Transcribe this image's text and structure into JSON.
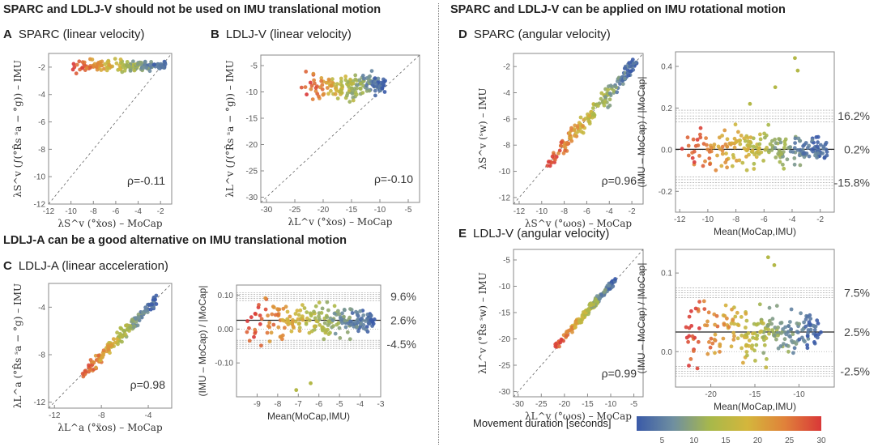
{
  "headings": {
    "top_left": "SPARC and LDLJ-V should not be used on IMU translational motion",
    "mid_left": "LDLJ-A can be a good alternative on IMU translational motion",
    "top_right": "SPARC and LDLJ-V can be applied on IMU rotational motion"
  },
  "panels": {
    "A": {
      "letter": "A",
      "title": "SPARC (linear velocity)"
    },
    "B": {
      "letter": "B",
      "title": "LDLJ-V (linear velocity)"
    },
    "C": {
      "letter": "C",
      "title": "LDLJ-A (linear acceleration)"
    },
    "D": {
      "letter": "D",
      "title": "SPARC (angular velocity)"
    },
    "E": {
      "letter": "E",
      "title": "LDLJ-V (angular velocity)"
    }
  },
  "colorbar": {
    "title": "Movement duration [seconds]",
    "ticks": [
      "5",
      "10",
      "15",
      "20",
      "25",
      "30"
    ],
    "range": [
      1,
      30
    ],
    "colors": [
      "#3a5aa8",
      "#6f8fa0",
      "#a8b84a",
      "#d4b63c",
      "#e0823a",
      "#d93838"
    ]
  },
  "chart_data": [
    {
      "id": "A",
      "type": "scatter",
      "title": "SPARC (linear velocity)",
      "xlabel": "λS^v (°ẋos) – MoCap",
      "ylabel": "λS^v (∫(°R̂s ˢa − °g)) – IMU",
      "xlim": [
        -12,
        -1
      ],
      "ylim": [
        -12,
        -1
      ],
      "xticks": [
        "-12",
        "-10",
        "-8",
        "-6",
        "-4",
        "-2"
      ],
      "yticks": [
        "-12",
        "-10",
        "-8",
        "-6",
        "-4",
        "-2"
      ],
      "identity_line": true,
      "annotation": "ρ=-0.11",
      "cluster": {
        "x_range": [
          -10,
          -1.5
        ],
        "y_center": -1.9,
        "y_spread": 0.35,
        "n": 170
      }
    },
    {
      "id": "B",
      "type": "scatter",
      "title": "LDLJ-V (linear velocity)",
      "xlabel": "λL^v (°ẋos) – MoCap",
      "ylabel": "λL^v (∫(°R̂s ˢa − °g)) – IMU",
      "xlim": [
        -31,
        -3
      ],
      "ylim": [
        -31,
        -3
      ],
      "xticks": [
        "-30",
        "-25",
        "-20",
        "-15",
        "-10",
        "-5"
      ],
      "yticks": [
        "-30",
        "-25",
        "-20",
        "-15",
        "-10",
        "-5"
      ],
      "identity_line": true,
      "annotation": "ρ=-0.10",
      "cluster": {
        "x_range": [
          -24,
          -9
        ],
        "y_center": -9,
        "y_spread": 2.2,
        "n": 170
      }
    },
    {
      "id": "C",
      "type": "scatter",
      "title": "LDLJ-A (linear acceleration)",
      "xlabel": "λL^a (°ẍos) – MoCap",
      "ylabel": "λL^a (°R̂s ˢa − °g) – IMU",
      "xlim": [
        -12.5,
        -2
      ],
      "ylim": [
        -12.5,
        -2
      ],
      "xticks": [
        "-12",
        "-8",
        "-4"
      ],
      "yticks": [
        "-12",
        "-8",
        "-4"
      ],
      "identity_line": true,
      "annotation": "ρ=0.98",
      "cluster": {
        "x_range": [
          -9.8,
          -3.3
        ],
        "offset": -0.1,
        "spread": 0.35,
        "n": 170
      }
    },
    {
      "id": "C-BA",
      "type": "scatter",
      "xlabel": "Mean(MoCap,IMU)",
      "ylabel": "(IMU – MoCap) / |MoCap|",
      "xlim": [
        -10,
        -3
      ],
      "ylim": [
        -0.2,
        0.13
      ],
      "xticks": [
        "-9",
        "-8",
        "-7",
        "-6",
        "-5",
        "-4",
        "-3"
      ],
      "yticks": [
        "-0.10",
        "0.00",
        "0.10"
      ],
      "lines": {
        "upper": 0.096,
        "mean": 0.026,
        "lower": -0.045
      },
      "line_labels": [
        "9.6%",
        "2.6%",
        "-4.5%"
      ],
      "cluster": {
        "x_range": [
          -9.6,
          -3.3
        ],
        "spread": 0.035,
        "n": 230,
        "outliers": [
          [
            -7.1,
            -0.18
          ],
          [
            -6.4,
            -0.16
          ]
        ]
      }
    },
    {
      "id": "D",
      "type": "scatter",
      "title": "SPARC (angular velocity)",
      "xlabel": "λS^v (°ωos) – MoCap",
      "ylabel": "λS^v (ˢw) – IMU",
      "xlim": [
        -12.5,
        -1
      ],
      "ylim": [
        -12.5,
        -1
      ],
      "xticks": [
        "-12",
        "-10",
        "-8",
        "-6",
        "-4",
        "-2"
      ],
      "yticks": [
        "-12",
        "-10",
        "-8",
        "-6",
        "-4",
        "-2"
      ],
      "identity_line": true,
      "annotation": "ρ=0.96",
      "cluster": {
        "x_range": [
          -9.5,
          -1.5
        ],
        "offset": 0.0,
        "spread": 0.45,
        "n": 170
      }
    },
    {
      "id": "D-BA",
      "type": "scatter",
      "xlabel": "Mean(MoCap,IMU)",
      "ylabel": "(IMU – MoCap) / |MoCap|",
      "xlim": [
        -12.3,
        -1
      ],
      "ylim": [
        -0.3,
        0.47
      ],
      "xticks": [
        "-12",
        "-10",
        "-8",
        "-6",
        "-4",
        "-2"
      ],
      "yticks": [
        "-0.2",
        "0.0",
        "0.2",
        "0.4"
      ],
      "lines": {
        "upper": 0.162,
        "mean": 0.002,
        "lower": -0.158
      },
      "line_labels": [
        "16.2%",
        "0.2%",
        "-15.8%"
      ],
      "cluster": {
        "x_range": [
          -12,
          -1.5
        ],
        "spread": 0.06,
        "n": 230,
        "outliers": [
          [
            -3.8,
            0.44
          ],
          [
            -3.6,
            0.38
          ],
          [
            -7.0,
            0.22
          ],
          [
            -5.2,
            0.3
          ]
        ]
      }
    },
    {
      "id": "E",
      "type": "scatter",
      "title": "LDLJ-V (angular velocity)",
      "xlabel": "λL^v (°ωos) – MoCap",
      "ylabel": "λL^v (°R̂s ˢw) – IMU",
      "xlim": [
        -31,
        -3
      ],
      "ylim": [
        -31,
        -3
      ],
      "xticks": [
        "-30",
        "-25",
        "-20",
        "-15",
        "-10",
        "-5"
      ],
      "yticks": [
        "-30",
        "-25",
        "-20",
        "-15",
        "-10",
        "-5"
      ],
      "identity_line": true,
      "annotation": "ρ=0.99",
      "cluster": {
        "x_range": [
          -22,
          -9
        ],
        "offset": 0.3,
        "spread": 0.5,
        "n": 170
      }
    },
    {
      "id": "E-BA",
      "type": "scatter",
      "xlabel": "Mean(MoCap,IMU)",
      "ylabel": "(IMU – MoCap) / |MoCap|",
      "xlim": [
        -24,
        -6
      ],
      "ylim": [
        -0.045,
        0.13
      ],
      "xticks": [
        "-20",
        "-15",
        "-10"
      ],
      "yticks": [
        "0.0",
        "0.1"
      ],
      "lines": {
        "upper": 0.075,
        "mean": 0.025,
        "lower": -0.025
      },
      "line_labels": [
        "7.5%",
        "2.5%",
        "-2.5%"
      ],
      "cluster": {
        "x_range": [
          -23,
          -7.5
        ],
        "spread": 0.022,
        "n": 230,
        "outliers": [
          [
            -13.5,
            0.12
          ],
          [
            -12.8,
            0.11
          ]
        ]
      }
    }
  ]
}
